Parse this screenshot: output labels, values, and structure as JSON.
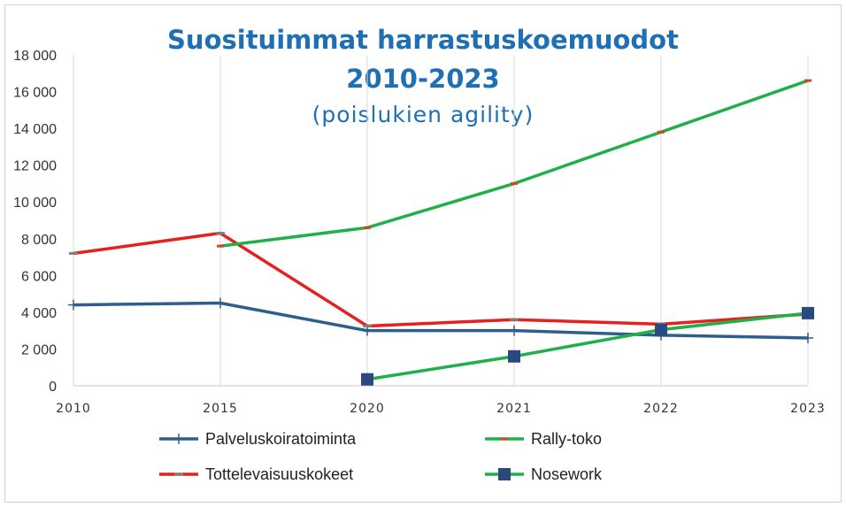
{
  "chart_data": {
    "type": "line",
    "title_line1": "Suosituimmat harrastuskoemuodot",
    "title_line2": "2010-2023",
    "subtitle": "(poislukien agility)",
    "categories": [
      "2010",
      "2015",
      "2020",
      "2021",
      "2022",
      "2023"
    ],
    "y_ticks": [
      "0",
      "2 000",
      "4 000",
      "6 000",
      "8 000",
      "10 000",
      "12 000",
      "14 000",
      "16 000",
      "18 000"
    ],
    "ylim": [
      0,
      18000
    ],
    "grid": "vertical",
    "legend_position": "bottom",
    "series": [
      {
        "name": "Palveluskoiratoiminta",
        "color": "#2e5f8a",
        "marker": "plus",
        "values": [
          4400,
          4500,
          3000,
          3000,
          2750,
          2600
        ]
      },
      {
        "name": "Rally-toko",
        "color": "#1fb04a",
        "marker": "dash-red",
        "values": [
          null,
          7600,
          8600,
          11000,
          13800,
          16600
        ]
      },
      {
        "name": "Tottelevaisuuskokeet",
        "color": "#e81f1f",
        "marker": "dash-gray",
        "values": [
          7200,
          8300,
          3250,
          3600,
          3350,
          3900
        ]
      },
      {
        "name": "Nosework",
        "color": "#1fb04a",
        "marker": "square",
        "values": [
          null,
          null,
          350,
          1600,
          3050,
          3950
        ]
      }
    ]
  }
}
